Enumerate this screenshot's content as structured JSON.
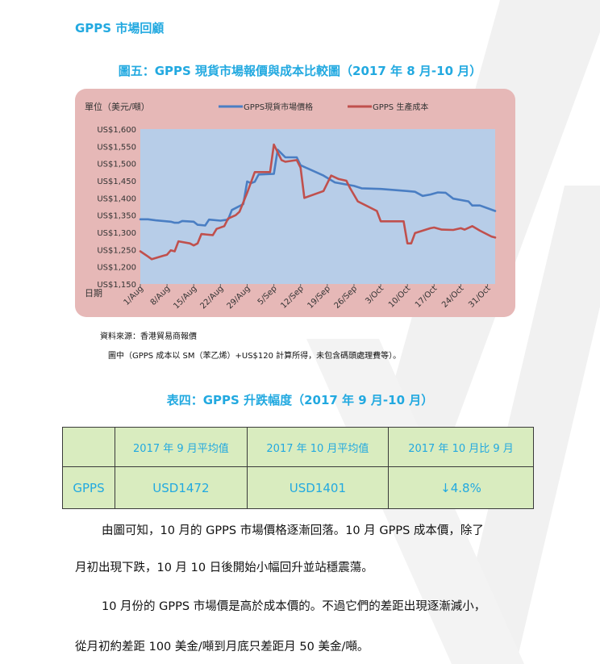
{
  "section_title": "GPPS 市場回顧",
  "figure_title": "圖五：GPPS  現貨市場報價與成本比較圖（2017 年 8 月-10 月）",
  "source_note": "資料來源：香港貿易商報價",
  "figure_note": "圖中（GPPS  成本以 SM（苯乙烯）+US$120  計算所得，未包含碼頭處理費等）。",
  "table_title": "表四：GPPS 升跌幅度（2017 年 9 月-10 月）",
  "table": {
    "headers": [
      "",
      "2017 年 9 月平均值",
      "2017 年 10 月平均值",
      "2017 年 10 月比 9 月"
    ],
    "rows": [
      [
        "GPPS",
        "USD1472",
        "USD1401",
        "↓4.8%"
      ]
    ]
  },
  "paragraphs": [
    "由圖可知，10 月的 GPPS 市場價格逐漸回落。10 月 GPPS 成本價，除了",
    "月初出現下跌，10 月 10 日後開始小幅回升並站穩震蕩。",
    "10 月份的 GPPS 市場價是高於成本價的。不過它們的差距出現逐漸減小，",
    "從月初約差距 100 美金/噸到月底只差距月 50 美金/噸。"
  ],
  "colors": {
    "accent": "#22a9e0",
    "chart_outer_bg": "#e6b8b7",
    "plot_bg": "#b7cde8",
    "series_price": "#4a7ec3",
    "series_cost": "#c0504d",
    "table_bg": "#d9ecbf"
  },
  "chart_data": {
    "type": "line",
    "title": "",
    "ylabel": "單位（美元/噸）",
    "xlabel": "日期",
    "ylim": [
      1150,
      1600
    ],
    "yticks": [
      1150,
      1200,
      1250,
      1300,
      1350,
      1400,
      1450,
      1500,
      1550,
      1600
    ],
    "ytick_labels": [
      "US$1,150",
      "US$1,200",
      "US$1,250",
      "US$1,300",
      "US$1,350",
      "US$1,400",
      "US$1,450",
      "US$1,500",
      "US$1,550",
      "US$1,600"
    ],
    "xlim": [
      "2017-08-01",
      "2017-11-02"
    ],
    "xtick_labels": [
      "1/Aug",
      "8/Aug",
      "15/Aug",
      "22/Aug",
      "29/Aug",
      "5/Sep",
      "12/Sep",
      "19/Sep",
      "26/Sep",
      "3/Oct",
      "10/Oct",
      "17/Oct",
      "24/Oct",
      "31/Oct"
    ],
    "xtick_dates": [
      "2017-08-01",
      "2017-08-08",
      "2017-08-15",
      "2017-08-22",
      "2017-08-29",
      "2017-09-05",
      "2017-09-12",
      "2017-09-19",
      "2017-09-26",
      "2017-10-03",
      "2017-10-10",
      "2017-10-17",
      "2017-10-24",
      "2017-10-31"
    ],
    "grid": false,
    "legend": "top",
    "series": [
      {
        "name": "GPPS現貨市場價格",
        "color": "#4a7ec3",
        "points": [
          [
            "2017-08-01",
            1338
          ],
          [
            "2017-08-03",
            1338
          ],
          [
            "2017-08-05",
            1335
          ],
          [
            "2017-08-07",
            1333
          ],
          [
            "2017-08-09",
            1331
          ],
          [
            "2017-08-10",
            1328
          ],
          [
            "2017-08-11",
            1328
          ],
          [
            "2017-08-12",
            1333
          ],
          [
            "2017-08-15",
            1331
          ],
          [
            "2017-08-16",
            1322
          ],
          [
            "2017-08-18",
            1320
          ],
          [
            "2017-08-19",
            1337
          ],
          [
            "2017-08-22",
            1334
          ],
          [
            "2017-08-24",
            1337
          ],
          [
            "2017-08-25",
            1365
          ],
          [
            "2017-08-28",
            1382
          ],
          [
            "2017-08-29",
            1448
          ],
          [
            "2017-08-30",
            1443
          ],
          [
            "2017-08-31",
            1447
          ],
          [
            "2017-09-01",
            1468
          ],
          [
            "2017-09-05",
            1470
          ],
          [
            "2017-09-06",
            1540
          ],
          [
            "2017-09-08",
            1518
          ],
          [
            "2017-09-11",
            1518
          ],
          [
            "2017-09-12",
            1495
          ],
          [
            "2017-09-14",
            1485
          ],
          [
            "2017-09-18",
            1465
          ],
          [
            "2017-09-21",
            1445
          ],
          [
            "2017-09-26",
            1435
          ],
          [
            "2017-09-28",
            1428
          ],
          [
            "2017-10-03",
            1426
          ],
          [
            "2017-10-10",
            1420
          ],
          [
            "2017-10-12",
            1418
          ],
          [
            "2017-10-14",
            1406
          ],
          [
            "2017-10-16",
            1410
          ],
          [
            "2017-10-18",
            1416
          ],
          [
            "2017-10-20",
            1415
          ],
          [
            "2017-10-22",
            1398
          ],
          [
            "2017-10-26",
            1390
          ],
          [
            "2017-10-27",
            1378
          ],
          [
            "2017-10-29",
            1378
          ],
          [
            "2017-11-02",
            1362
          ]
        ]
      },
      {
        "name": "GPPS 生產成本",
        "color": "#c0504d",
        "points": [
          [
            "2017-08-01",
            1245
          ],
          [
            "2017-08-03",
            1230
          ],
          [
            "2017-08-04",
            1222
          ],
          [
            "2017-08-07",
            1232
          ],
          [
            "2017-08-08",
            1235
          ],
          [
            "2017-08-09",
            1248
          ],
          [
            "2017-08-10",
            1245
          ],
          [
            "2017-08-11",
            1274
          ],
          [
            "2017-08-14",
            1268
          ],
          [
            "2017-08-15",
            1262
          ],
          [
            "2017-08-16",
            1268
          ],
          [
            "2017-08-17",
            1295
          ],
          [
            "2017-08-20",
            1292
          ],
          [
            "2017-08-21",
            1310
          ],
          [
            "2017-08-23",
            1318
          ],
          [
            "2017-08-24",
            1340
          ],
          [
            "2017-08-26",
            1350
          ],
          [
            "2017-08-27",
            1360
          ],
          [
            "2017-08-29",
            1415
          ],
          [
            "2017-08-31",
            1475
          ],
          [
            "2017-09-04",
            1475
          ],
          [
            "2017-09-05",
            1555
          ],
          [
            "2017-09-07",
            1510
          ],
          [
            "2017-09-08",
            1505
          ],
          [
            "2017-09-11",
            1510
          ],
          [
            "2017-09-12",
            1488
          ],
          [
            "2017-09-13",
            1400
          ],
          [
            "2017-09-18",
            1420
          ],
          [
            "2017-09-20",
            1465
          ],
          [
            "2017-09-22",
            1455
          ],
          [
            "2017-09-24",
            1450
          ],
          [
            "2017-09-25",
            1428
          ],
          [
            "2017-09-27",
            1390
          ],
          [
            "2017-10-02",
            1362
          ],
          [
            "2017-10-03",
            1332
          ],
          [
            "2017-10-09",
            1332
          ],
          [
            "2017-10-10",
            1268
          ],
          [
            "2017-10-11",
            1268
          ],
          [
            "2017-10-12",
            1298
          ],
          [
            "2017-10-16",
            1312
          ],
          [
            "2017-10-17",
            1314
          ],
          [
            "2017-10-19",
            1308
          ],
          [
            "2017-10-22",
            1307
          ],
          [
            "2017-10-24",
            1312
          ],
          [
            "2017-10-25",
            1308
          ],
          [
            "2017-10-27",
            1318
          ],
          [
            "2017-10-29",
            1305
          ],
          [
            "2017-11-01",
            1288
          ],
          [
            "2017-11-02",
            1285
          ]
        ]
      }
    ]
  }
}
